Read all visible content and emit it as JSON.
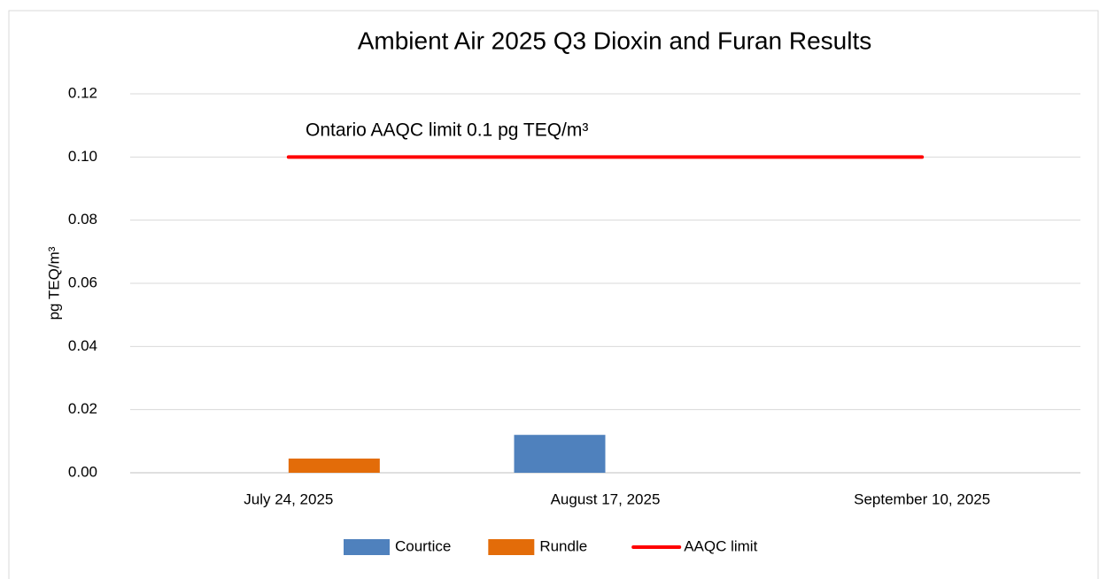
{
  "chart_data": {
    "type": "bar",
    "title": "Ambient Air 2025 Q3 Dioxin and Furan Results",
    "y_label": "pg TEQ/m³",
    "annotation": "Ontario AAQC limit 0.1 pg TEQ/m³",
    "categories": [
      "July 24, 2025",
      "August 17, 2025",
      "September 10, 2025"
    ],
    "series": [
      {
        "name": "Courtice",
        "color": "#4f81bd",
        "values": [
          null,
          0.012,
          null
        ]
      },
      {
        "name": "Rundle",
        "color": "#e36c09",
        "values": [
          0.0045,
          null,
          null
        ]
      }
    ],
    "limit": {
      "name": "AAQC limit",
      "color": "#ff0000",
      "values": [
        0.1,
        0.1,
        0.1
      ]
    },
    "ylim": [
      0,
      0.12
    ],
    "yticks": [
      {
        "value": 0,
        "label": "0.00"
      },
      0.02,
      0.04,
      0.06,
      0.08,
      {
        "value": 0.1,
        "label": "0.10"
      },
      0.12
    ],
    "grid": true,
    "legend": "bottom"
  }
}
